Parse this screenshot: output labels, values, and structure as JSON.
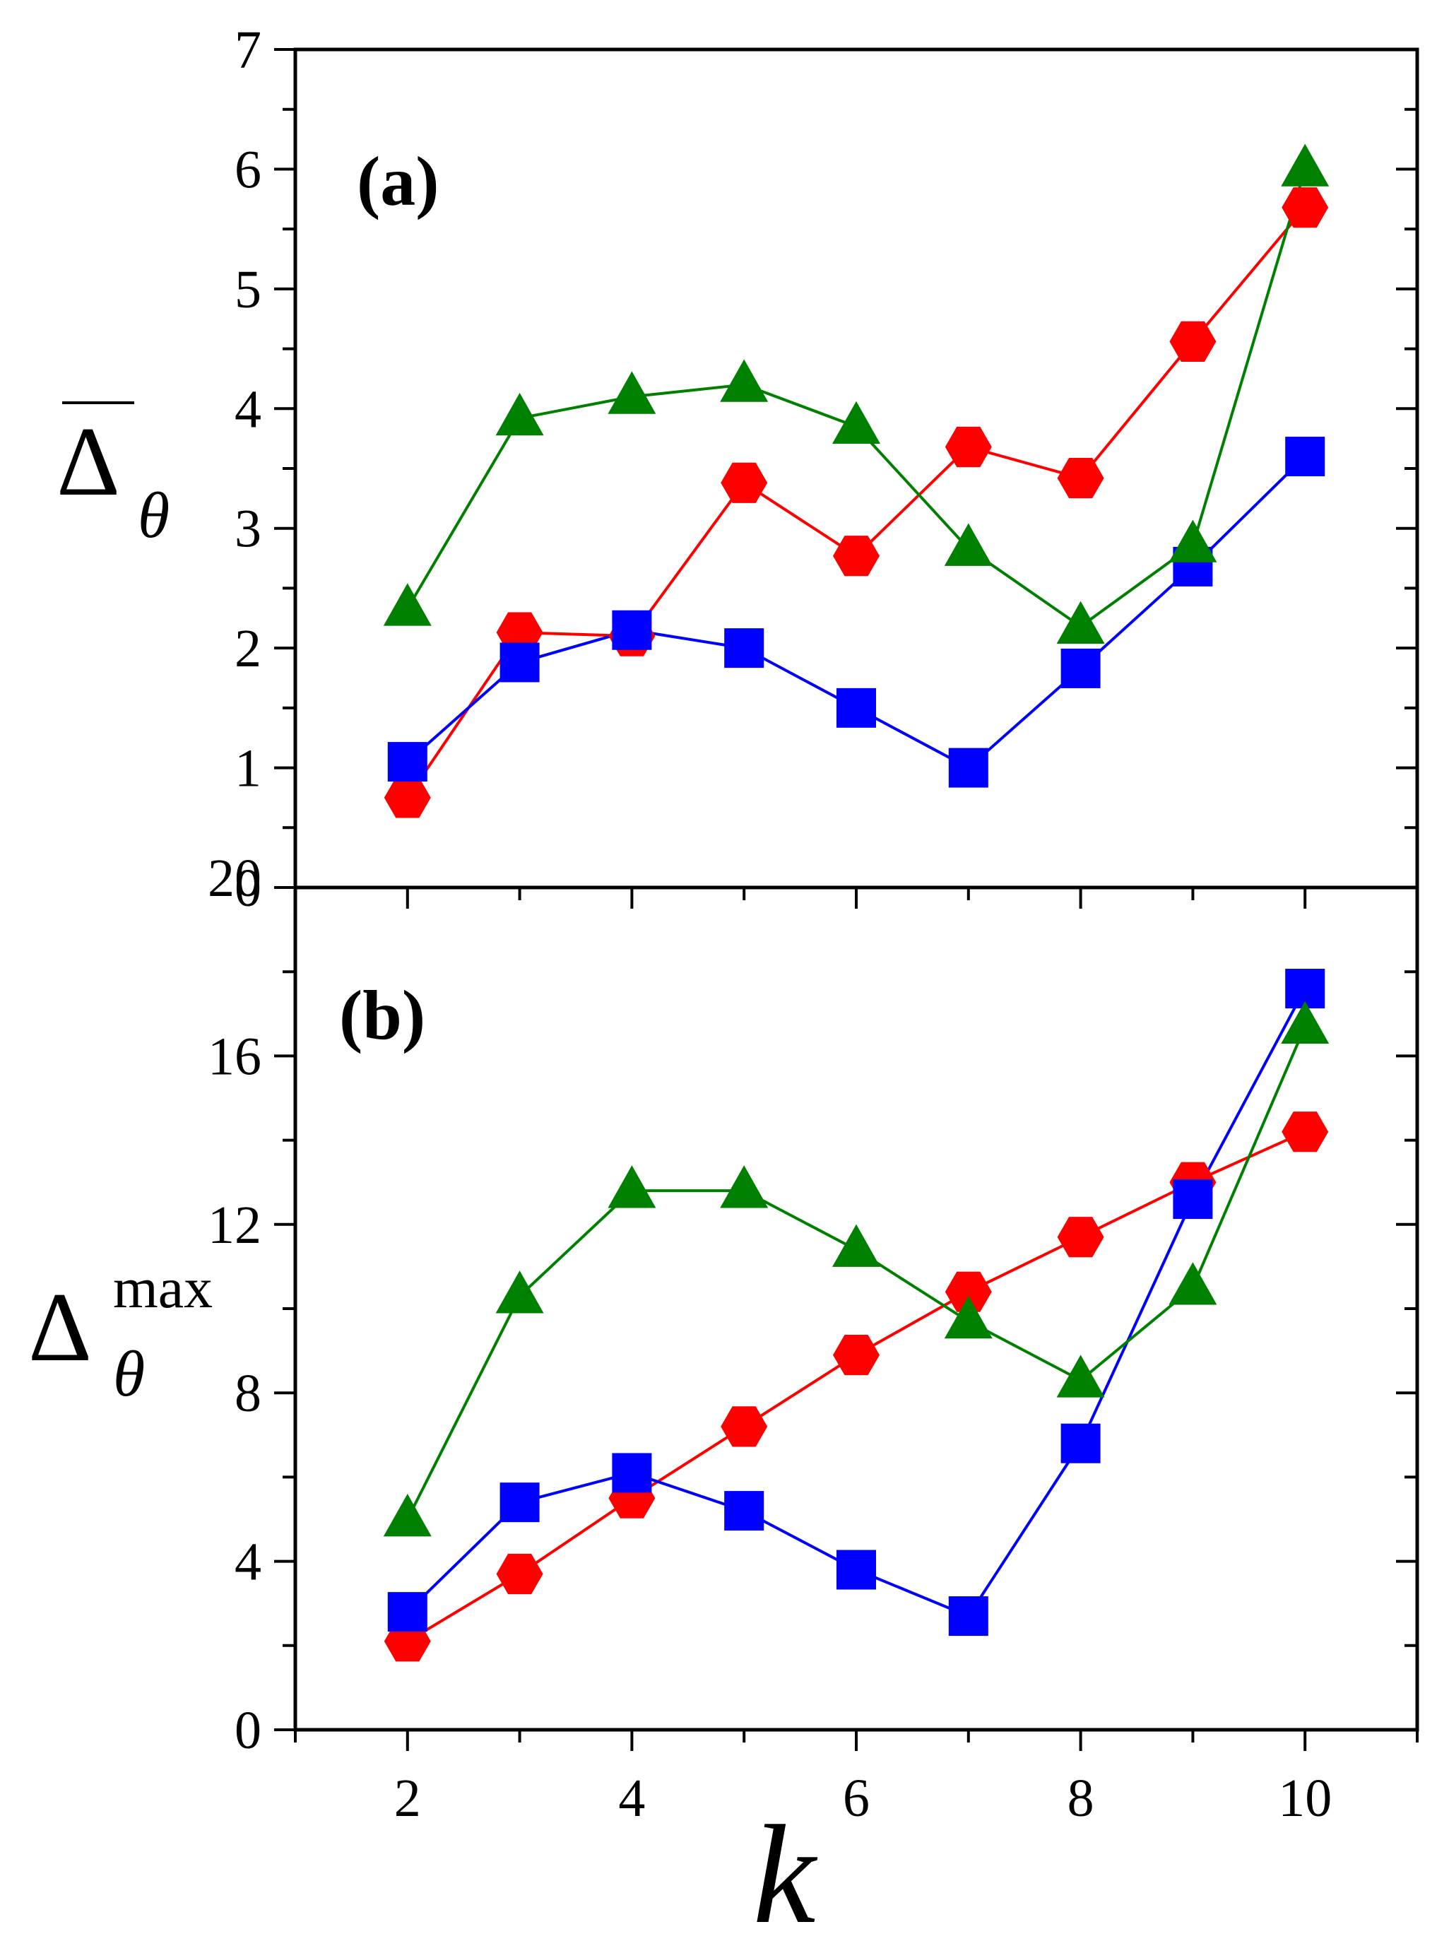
{
  "chart_data": [
    {
      "type": "line",
      "panel_label": "(a)",
      "ylabel": {
        "symbol": "Δ",
        "subscript": "θ",
        "overline": true
      },
      "xlabel": "k",
      "xlim": [
        1,
        11
      ],
      "ylim": [
        0,
        7
      ],
      "yticks": [
        0,
        1,
        2,
        3,
        4,
        5,
        6,
        7
      ],
      "ytick_labels": [
        "0",
        "1",
        "2",
        "3",
        "4",
        "5",
        "6",
        "7"
      ],
      "x": [
        2,
        3,
        4,
        5,
        6,
        7,
        8,
        9,
        10
      ],
      "series": [
        {
          "name": "red hexagons",
          "color": "#ff0000",
          "marker": "hexagon",
          "values": [
            0.75,
            2.13,
            2.1,
            3.38,
            2.77,
            3.68,
            3.42,
            4.56,
            5.68
          ]
        },
        {
          "name": "blue squares",
          "color": "#0000ff",
          "marker": "square",
          "values": [
            1.05,
            1.88,
            2.15,
            2.0,
            1.5,
            1.0,
            1.83,
            2.68,
            3.6
          ]
        },
        {
          "name": "green triangles",
          "color": "#008000",
          "marker": "triangle",
          "values": [
            2.33,
            3.92,
            4.1,
            4.2,
            3.85,
            2.83,
            2.18,
            2.86,
            6.0
          ]
        }
      ]
    },
    {
      "type": "line",
      "panel_label": "(b)",
      "ylabel": {
        "symbol": "Δ",
        "subscript": "θ",
        "superscript": "max"
      },
      "xlabel": "k",
      "xlim": [
        1,
        11
      ],
      "ylim": [
        0,
        20
      ],
      "yticks": [
        0,
        4,
        8,
        12,
        16,
        20
      ],
      "ytick_labels": [
        "0",
        "4",
        "8",
        "12",
        "16",
        "20"
      ],
      "xticks": [
        2,
        4,
        6,
        8,
        10
      ],
      "xtick_labels": [
        "2",
        "4",
        "6",
        "8",
        "10"
      ],
      "x": [
        2,
        3,
        4,
        5,
        6,
        7,
        8,
        9,
        10
      ],
      "series": [
        {
          "name": "red hexagons",
          "color": "#ff0000",
          "marker": "hexagon",
          "values": [
            2.1,
            3.7,
            5.5,
            7.2,
            8.9,
            10.4,
            11.7,
            13.0,
            14.2
          ]
        },
        {
          "name": "blue squares",
          "color": "#0000ff",
          "marker": "square",
          "values": [
            2.8,
            5.4,
            6.1,
            5.2,
            3.8,
            2.7,
            6.8,
            12.6,
            17.6
          ]
        },
        {
          "name": "green triangles",
          "color": "#008000",
          "marker": "triangle",
          "values": [
            5.0,
            10.3,
            12.8,
            12.8,
            11.4,
            9.7,
            8.3,
            10.5,
            16.7
          ]
        }
      ]
    }
  ]
}
